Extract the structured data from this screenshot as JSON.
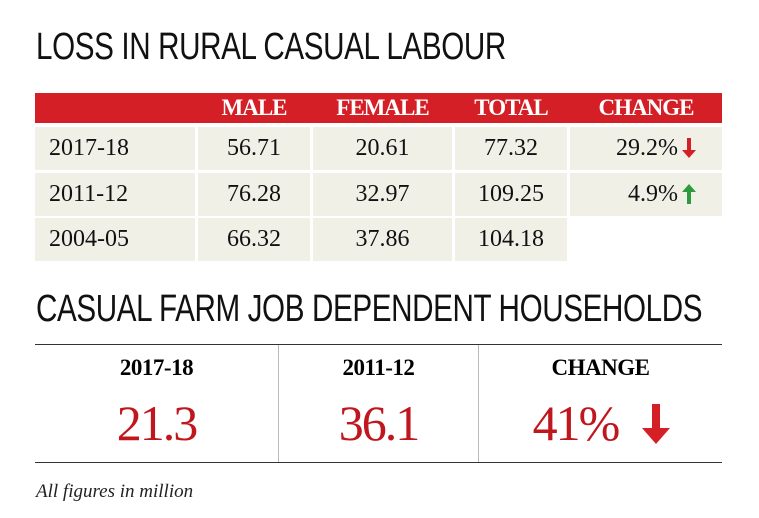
{
  "section1": {
    "title": "LOSS IN RURAL CASUAL LABOUR",
    "columns": [
      "MALE",
      "FEMALE",
      "TOTAL",
      "CHANGE"
    ],
    "rows": [
      {
        "label": "2017-18",
        "cells": [
          "56.71",
          "20.61",
          "77.32",
          "29.2%"
        ],
        "trend": "down"
      },
      {
        "label": "2011-12",
        "cells": [
          "76.28",
          "32.97",
          "109.25",
          "4.9%"
        ],
        "trend": "up"
      },
      {
        "label": "2004-05",
        "cells": [
          "66.32",
          "37.86",
          "104.18"
        ]
      }
    ]
  },
  "section2": {
    "title": "CASUAL FARM JOB DEPENDENT HOUSEHOLDS",
    "columns": [
      {
        "label": "2017-18",
        "value": "21.3"
      },
      {
        "label": "2011-12",
        "value": "36.1"
      },
      {
        "label": "CHANGE",
        "value": "41%",
        "trend": "down"
      }
    ]
  },
  "footnote": "All figures in million"
}
